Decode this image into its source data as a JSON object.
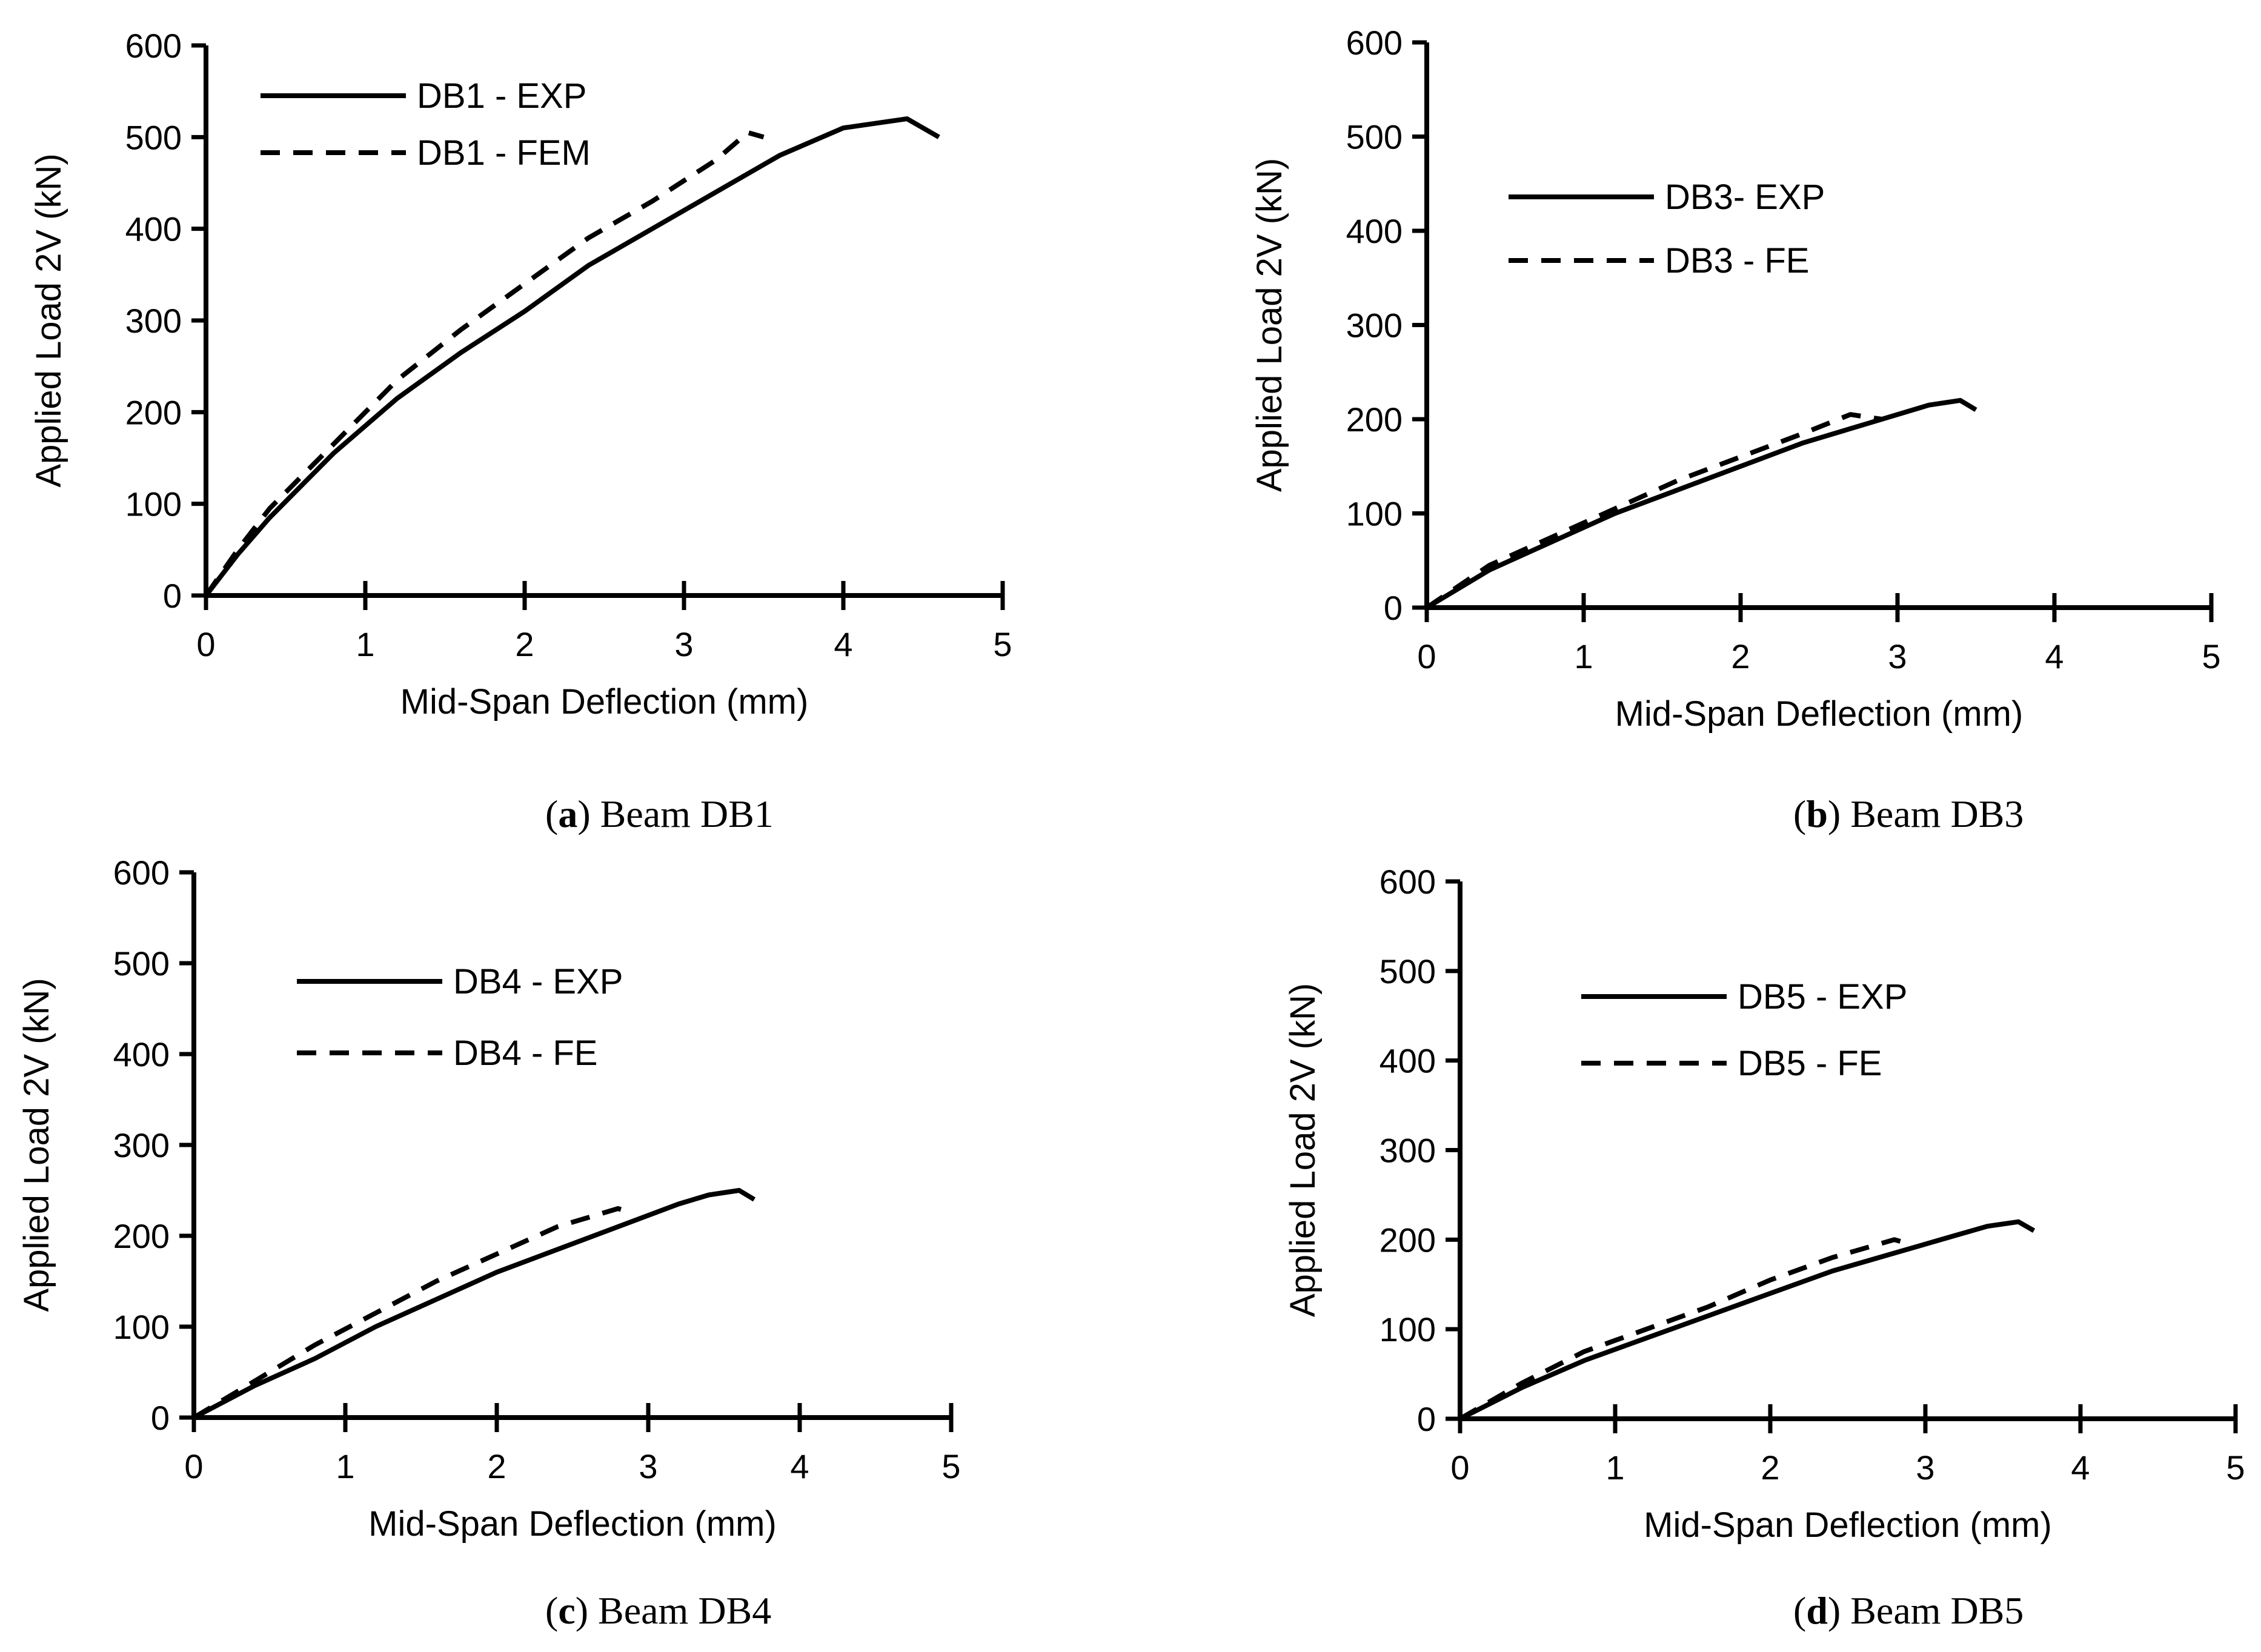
{
  "chart_data": [
    {
      "type": "line",
      "caption_letter": "a",
      "caption_text": "Beam DB1",
      "xlabel": "Mid-Span Deflection (mm)",
      "ylabel": "Applied Load 2V (kN)",
      "xlim": [
        0,
        5
      ],
      "ylim": [
        0,
        600
      ],
      "xticks": [
        0,
        1,
        2,
        3,
        4,
        5
      ],
      "yticks": [
        0,
        100,
        200,
        300,
        400,
        500,
        600
      ],
      "legend_position": "top-left",
      "series": [
        {
          "name": "DB1 - EXP",
          "style": "solid",
          "x": [
            0,
            0.2,
            0.4,
            0.8,
            1.2,
            1.6,
            2.0,
            2.4,
            2.8,
            3.2,
            3.6,
            4.0,
            4.4,
            4.6
          ],
          "y": [
            0,
            45,
            85,
            155,
            215,
            265,
            310,
            360,
            400,
            440,
            480,
            510,
            520,
            500
          ]
        },
        {
          "name": "DB1 - FEM",
          "style": "dashed",
          "x": [
            0,
            0.2,
            0.4,
            0.8,
            1.2,
            1.6,
            2.0,
            2.4,
            2.8,
            3.2,
            3.4,
            3.5
          ],
          "y": [
            0,
            50,
            95,
            165,
            235,
            290,
            340,
            390,
            430,
            475,
            505,
            500
          ]
        }
      ]
    },
    {
      "type": "line",
      "caption_letter": "b",
      "caption_text": "Beam DB3",
      "xlabel": "Mid-Span Deflection (mm)",
      "ylabel": "Applied Load 2V (kN)",
      "xlim": [
        0,
        5
      ],
      "ylim": [
        0,
        600
      ],
      "xticks": [
        0,
        1,
        2,
        3,
        4,
        5
      ],
      "yticks": [
        0,
        100,
        200,
        300,
        400,
        500,
        600
      ],
      "legend_position": "upper-left",
      "series": [
        {
          "name": "DB3- EXP",
          "style": "solid",
          "x": [
            0,
            0.4,
            0.8,
            1.2,
            1.6,
            2.0,
            2.4,
            2.8,
            3.2,
            3.4,
            3.5
          ],
          "y": [
            0,
            40,
            70,
            100,
            125,
            150,
            175,
            195,
            215,
            220,
            210
          ]
        },
        {
          "name": "DB3 - FE",
          "style": "dashed",
          "x": [
            0,
            0.4,
            0.8,
            1.2,
            1.6,
            2.0,
            2.4,
            2.7,
            2.9
          ],
          "y": [
            0,
            45,
            75,
            105,
            135,
            160,
            185,
            205,
            200
          ]
        }
      ]
    },
    {
      "type": "line",
      "caption_letter": "c",
      "caption_text": "Beam DB4",
      "xlabel": "Mid-Span Deflection (mm)",
      "ylabel": "Applied Load 2V (kN)",
      "xlim": [
        0,
        5
      ],
      "ylim": [
        0,
        600
      ],
      "xticks": [
        0,
        1,
        2,
        3,
        4,
        5
      ],
      "yticks": [
        0,
        100,
        200,
        300,
        400,
        500,
        600
      ],
      "legend_position": "upper-left",
      "series": [
        {
          "name": "DB4 - EXP",
          "style": "solid",
          "x": [
            0,
            0.4,
            0.8,
            1.2,
            1.6,
            2.0,
            2.4,
            2.8,
            3.2,
            3.4,
            3.6,
            3.7
          ],
          "y": [
            0,
            35,
            65,
            100,
            130,
            160,
            185,
            210,
            235,
            245,
            250,
            240
          ]
        },
        {
          "name": "DB4 - FE",
          "style": "dashed",
          "x": [
            0,
            0.4,
            0.8,
            1.2,
            1.6,
            2.0,
            2.4,
            2.8,
            2.9
          ],
          "y": [
            0,
            40,
            80,
            115,
            150,
            180,
            210,
            230,
            225
          ]
        }
      ]
    },
    {
      "type": "line",
      "caption_letter": "d",
      "caption_text": "Beam DB5",
      "xlabel": "Mid-Span Deflection (mm)",
      "ylabel": "Applied Load 2V (kN)",
      "xlim": [
        0,
        5
      ],
      "ylim": [
        0,
        600
      ],
      "xticks": [
        0,
        1,
        2,
        3,
        4,
        5
      ],
      "yticks": [
        0,
        100,
        200,
        300,
        400,
        500,
        600
      ],
      "legend_position": "upper-left",
      "series": [
        {
          "name": "DB5 - EXP",
          "style": "solid",
          "x": [
            0,
            0.4,
            0.8,
            1.2,
            1.6,
            2.0,
            2.4,
            2.8,
            3.2,
            3.4,
            3.6,
            3.7
          ],
          "y": [
            0,
            35,
            65,
            90,
            115,
            140,
            165,
            185,
            205,
            215,
            220,
            210
          ]
        },
        {
          "name": "DB5 - FE",
          "style": "dashed",
          "x": [
            0,
            0.4,
            0.8,
            1.2,
            1.6,
            2.0,
            2.4,
            2.8,
            2.9
          ],
          "y": [
            0,
            40,
            75,
            100,
            125,
            155,
            180,
            200,
            195
          ]
        }
      ]
    }
  ]
}
